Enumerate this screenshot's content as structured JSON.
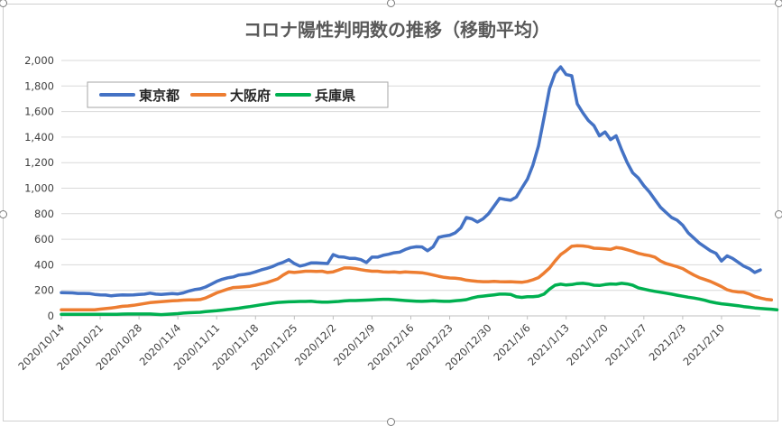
{
  "chart_data": {
    "type": "line",
    "title": "コロナ陽性判明数の推移（移動平均）",
    "xlabel": "",
    "ylabel": "",
    "ylim": [
      0,
      2000
    ],
    "yticks": [
      "0",
      "200",
      "400",
      "600",
      "800",
      "1,000",
      "1,200",
      "1,400",
      "1,600",
      "1,800",
      "2,000"
    ],
    "x_tick_labels": [
      "2020/10/14",
      "2020/10/21",
      "2020/10/28",
      "2020/11/4",
      "2020/11/11",
      "2020/11/18",
      "2020/11/25",
      "2020/12/2",
      "2020/12/9",
      "2020/12/16",
      "2020/12/23",
      "2020/12/30",
      "2021/1/6",
      "2021/1/13",
      "2021/1/20",
      "2021/1/27",
      "2021/2/3",
      "2021/2/10"
    ],
    "x_start": "2020/10/14",
    "grid": true,
    "legend_position": "top-left",
    "series": [
      {
        "name": "東京都",
        "color": "#4472C4",
        "values": [
          182,
          181,
          180,
          176,
          176,
          175,
          168,
          164,
          163,
          157,
          162,
          164,
          163,
          165,
          168,
          170,
          178,
          170,
          168,
          172,
          175,
          172,
          180,
          195,
          206,
          212,
          226,
          248,
          270,
          287,
          298,
          305,
          320,
          325,
          332,
          345,
          360,
          372,
          385,
          405,
          420,
          440,
          410,
          390,
          400,
          415,
          415,
          413,
          410,
          480,
          463,
          460,
          450,
          450,
          440,
          418,
          460,
          460,
          474,
          483,
          494,
          500,
          520,
          535,
          541,
          540,
          510,
          540,
          615,
          625,
          632,
          650,
          690,
          770,
          760,
          735,
          760,
          800,
          860,
          920,
          912,
          905,
          930,
          1000,
          1070,
          1180,
          1330,
          1550,
          1780,
          1900,
          1950,
          1890,
          1880,
          1660,
          1590,
          1530,
          1490,
          1410,
          1440,
          1380,
          1410,
          1300,
          1200,
          1120,
          1080,
          1020,
          970,
          910,
          850,
          810,
          770,
          750,
          710,
          650,
          610,
          570,
          540,
          510,
          490,
          430,
          470,
          450,
          420,
          390,
          370,
          340,
          360
        ]
      },
      {
        "name": "大阪府",
        "color": "#ED7D31",
        "values": [
          47,
          47,
          47,
          47,
          47,
          47,
          48,
          53,
          57,
          62,
          68,
          75,
          78,
          83,
          90,
          97,
          104,
          108,
          112,
          115,
          118,
          120,
          124,
          126,
          126,
          128,
          140,
          160,
          180,
          195,
          210,
          222,
          225,
          228,
          232,
          240,
          250,
          260,
          275,
          290,
          320,
          345,
          340,
          345,
          350,
          350,
          348,
          350,
          340,
          345,
          360,
          375,
          375,
          370,
          362,
          355,
          350,
          350,
          345,
          343,
          345,
          340,
          345,
          342,
          340,
          338,
          330,
          320,
          310,
          302,
          297,
          295,
          290,
          280,
          275,
          270,
          268,
          268,
          270,
          268,
          267,
          268,
          265,
          263,
          270,
          283,
          300,
          335,
          375,
          430,
          480,
          510,
          545,
          550,
          548,
          542,
          530,
          528,
          525,
          520,
          535,
          530,
          518,
          505,
          490,
          480,
          472,
          460,
          430,
          410,
          398,
          385,
          370,
          345,
          320,
          300,
          285,
          270,
          250,
          230,
          205,
          193,
          187,
          185,
          172,
          152,
          140,
          130,
          125
        ]
      },
      {
        "name": "兵庫県",
        "color": "#00B050",
        "values": [
          12,
          12,
          12,
          12,
          12,
          12,
          12,
          12,
          12,
          12,
          13,
          14,
          15,
          15,
          15,
          15,
          15,
          12,
          10,
          12,
          15,
          18,
          22,
          25,
          27,
          28,
          33,
          37,
          40,
          45,
          50,
          55,
          60,
          67,
          73,
          80,
          87,
          93,
          100,
          105,
          108,
          110,
          112,
          113,
          113,
          115,
          110,
          108,
          108,
          110,
          113,
          117,
          120,
          120,
          122,
          124,
          126,
          128,
          130,
          130,
          127,
          124,
          120,
          117,
          115,
          114,
          116,
          118,
          116,
          114,
          114,
          118,
          122,
          127,
          140,
          150,
          155,
          160,
          165,
          170,
          170,
          168,
          150,
          145,
          150,
          150,
          155,
          170,
          210,
          240,
          248,
          242,
          245,
          253,
          255,
          250,
          240,
          238,
          245,
          250,
          248,
          255,
          250,
          240,
          220,
          210,
          200,
          192,
          185,
          178,
          170,
          162,
          154,
          146,
          140,
          132,
          122,
          110,
          102,
          95,
          90,
          85,
          80,
          73,
          68,
          62,
          58,
          55,
          52,
          48
        ]
      }
    ]
  }
}
